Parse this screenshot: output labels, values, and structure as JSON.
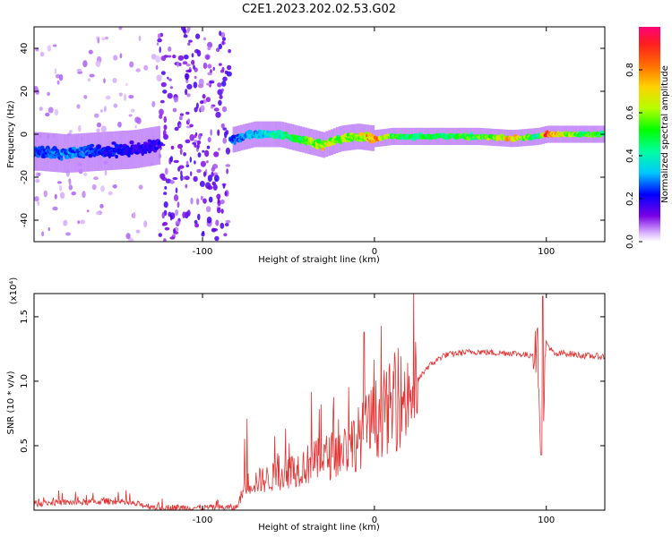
{
  "figure_title": "C2E1.2023.202.02.53.G02",
  "colors": {
    "snr_line": "#e33333",
    "frame": "#000000",
    "spectrogram_background": "#ffffff"
  },
  "chart_data": [
    {
      "type": "heatmap",
      "title": "C2E1.2023.202.02.53.G02",
      "xlabel": "Height of straight line (km)",
      "ylabel": "Frequency (Hz)",
      "xlim": [
        -198,
        134
      ],
      "ylim": [
        -50,
        50
      ],
      "x_ticks": [
        -100,
        0,
        100
      ],
      "x_tick_labels": [
        "-100",
        "0",
        "100"
      ],
      "y_ticks": [
        -40,
        -20,
        0,
        20,
        40
      ],
      "y_tick_labels": [
        "-40",
        "-20",
        "0",
        "20",
        "40"
      ],
      "colorbar": {
        "label": "Normalized spectral amplitude",
        "range": [
          0.0,
          1.0
        ],
        "ticks": [
          0.0,
          0.2,
          0.4,
          0.6,
          0.8
        ],
        "tick_labels": [
          "0.0",
          "0.2",
          "0.4",
          "0.6",
          "0.8"
        ],
        "colormap": "rainbow"
      },
      "ridge": {
        "description_of_data": "approximate centre frequency (Hz) of the dominant spectral ridge and its normalized amplitude vs height",
        "x": [
          -195,
          -180,
          -160,
          -140,
          -125,
          -85,
          -70,
          -55,
          -40,
          -30,
          -20,
          -10,
          0,
          10,
          20,
          40,
          60,
          80,
          95,
          100,
          120,
          134
        ],
        "freq": [
          -8,
          -9,
          -8,
          -7,
          -5,
          -3,
          0,
          0,
          -3,
          -5,
          -2,
          -1,
          -2,
          -1,
          -1,
          -1,
          -1,
          -2,
          -1,
          0,
          0,
          0
        ],
        "amplitude": [
          0.25,
          0.3,
          0.25,
          0.2,
          0.2,
          0.25,
          0.35,
          0.45,
          0.55,
          0.7,
          0.6,
          0.65,
          0.85,
          0.55,
          0.5,
          0.5,
          0.55,
          0.75,
          0.45,
          0.9,
          0.55,
          0.55
        ]
      },
      "noise_band": {
        "x_range": [
          -125,
          -84
        ],
        "freq_range": [
          -50,
          50
        ]
      }
    },
    {
      "type": "line",
      "xlabel": "Height of straight line (km)",
      "ylabel": "SNR (10 * v/v)",
      "y_multiplier": "(x10⁴)",
      "xlim": [
        -198,
        134
      ],
      "ylim": [
        0,
        1.68
      ],
      "x_ticks": [
        -100,
        0,
        100
      ],
      "x_tick_labels": [
        "-100",
        "0",
        "100"
      ],
      "y_ticks": [
        0.5,
        1.0,
        1.5
      ],
      "y_tick_labels": [
        "0.5",
        "1.0",
        "1.5"
      ],
      "series": [
        {
          "x": [
            -198,
            -185,
            -170,
            -155,
            -140,
            -125,
            -110,
            -95,
            -80,
            -75,
            -70,
            -60,
            -50,
            -40,
            -30,
            -20,
            -10,
            0,
            10,
            20,
            25,
            30,
            40,
            50,
            60,
            70,
            80,
            90,
            95,
            97,
            100,
            105,
            110,
            120,
            134
          ],
          "y": [
            0.05,
            0.06,
            0.06,
            0.07,
            0.05,
            0.02,
            0.02,
            0.02,
            0.02,
            0.2,
            0.22,
            0.25,
            0.3,
            0.35,
            0.4,
            0.45,
            0.55,
            0.7,
            0.8,
            0.9,
            1.0,
            1.1,
            1.2,
            1.22,
            1.23,
            1.22,
            1.22,
            1.2,
            1.25,
            0.45,
            1.3,
            1.2,
            1.22,
            1.2,
            1.19
          ]
        }
      ]
    }
  ]
}
